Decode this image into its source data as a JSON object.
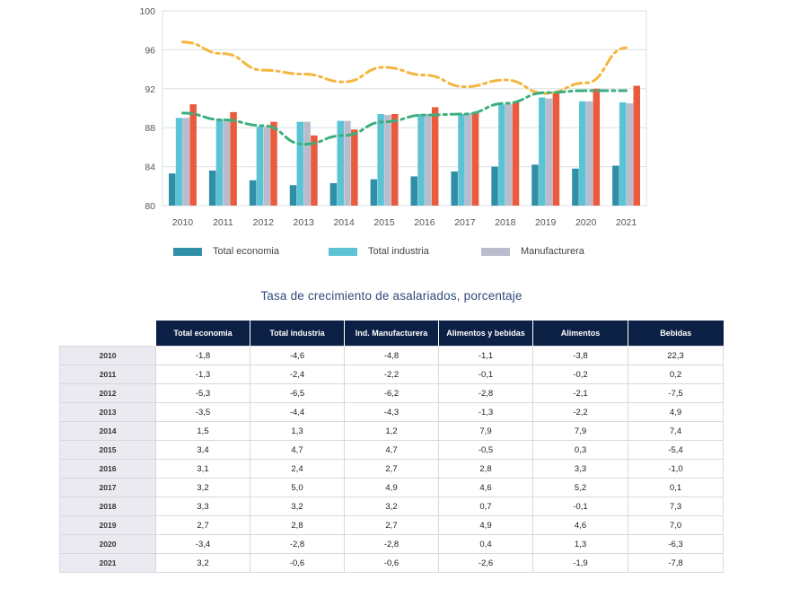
{
  "chart_data": {
    "type": "bar",
    "categories": [
      "2010",
      "2011",
      "2012",
      "2013",
      "2014",
      "2015",
      "2016",
      "2017",
      "2018",
      "2019",
      "2020",
      "2021"
    ],
    "ylim": [
      80,
      100
    ],
    "yticks": [
      80,
      84,
      88,
      92,
      96,
      100
    ],
    "grid": true,
    "series": [
      {
        "name": "Total economia",
        "kind": "bar",
        "color": "#2e8fa6",
        "values": [
          83.3,
          83.6,
          82.6,
          82.1,
          82.3,
          82.7,
          83.0,
          83.5,
          84.0,
          84.2,
          83.8,
          84.1
        ]
      },
      {
        "name": "Total industria",
        "kind": "bar",
        "color": "#5cc3d4",
        "values": [
          89.0,
          88.9,
          88.1,
          88.6,
          88.7,
          89.4,
          89.4,
          89.4,
          90.4,
          91.1,
          90.7,
          90.6
        ]
      },
      {
        "name": "Manufacturera",
        "kind": "bar",
        "color": "#b9bccc",
        "values": [
          89.0,
          88.9,
          88.1,
          88.6,
          88.7,
          89.3,
          89.4,
          89.5,
          90.4,
          91.0,
          90.7,
          90.5
        ]
      },
      {
        "name": "",
        "kind": "bar",
        "color": "#ea5a3d",
        "values": [
          90.4,
          89.6,
          88.6,
          87.2,
          87.8,
          89.4,
          90.1,
          89.6,
          90.6,
          91.6,
          92.0,
          92.3
        ]
      },
      {
        "name": "",
        "kind": "line",
        "color": "#f4b63e",
        "values": [
          96.8,
          95.6,
          93.9,
          93.5,
          92.7,
          94.2,
          93.4,
          92.2,
          92.9,
          91.5,
          92.6,
          96.2
        ]
      },
      {
        "name": "",
        "kind": "line",
        "color": "#3daf7e",
        "values": [
          89.5,
          88.8,
          88.2,
          86.3,
          87.2,
          88.6,
          89.3,
          89.4,
          90.5,
          91.6,
          91.8,
          91.8
        ]
      }
    ]
  },
  "legend": [
    {
      "label": "Total economia",
      "color": "#2e8fa6"
    },
    {
      "label": "Total industria",
      "color": "#5cc3d4"
    },
    {
      "label": "Manufacturera",
      "color": "#b9bccc"
    }
  ],
  "table": {
    "title": "Tasa de crecimiento de asalariados, porcentaje",
    "headers": [
      "Total economia",
      "Total industria",
      "Ind. Manufacturera",
      "Alimentos y bebidas",
      "Alimentos",
      "Bebidas"
    ],
    "rows": [
      {
        "year": "2010",
        "cells": [
          "-1,8",
          "-4,6",
          "-4,8",
          "-1,1",
          "-3,8",
          "22,3"
        ]
      },
      {
        "year": "2011",
        "cells": [
          "-1,3",
          "-2,4",
          "-2,2",
          "-0,1",
          "-0,2",
          "0,2"
        ]
      },
      {
        "year": "2012",
        "cells": [
          "-5,3",
          "-6,5",
          "-6,2",
          "-2,8",
          "-2,1",
          "-7,5"
        ]
      },
      {
        "year": "2013",
        "cells": [
          "-3,5",
          "-4,4",
          "-4,3",
          "-1,3",
          "-2,2",
          "4,9"
        ]
      },
      {
        "year": "2014",
        "cells": [
          "1,5",
          "1,3",
          "1,2",
          "7,9",
          "7,9",
          "7,4"
        ]
      },
      {
        "year": "2015",
        "cells": [
          "3,4",
          "4,7",
          "4,7",
          "-0,5",
          "0,3",
          "-5,4"
        ]
      },
      {
        "year": "2016",
        "cells": [
          "3,1",
          "2,4",
          "2,7",
          "2,8",
          "3,3",
          "-1,0"
        ]
      },
      {
        "year": "2017",
        "cells": [
          "3,2",
          "5,0",
          "4,9",
          "4,6",
          "5,2",
          "0,1"
        ]
      },
      {
        "year": "2018",
        "cells": [
          "3,3",
          "3,2",
          "3,2",
          "0,7",
          "-0,1",
          "7,3"
        ]
      },
      {
        "year": "2019",
        "cells": [
          "2,7",
          "2,8",
          "2,7",
          "4,9",
          "4,6",
          "7,0"
        ]
      },
      {
        "year": "2020",
        "cells": [
          "-3,4",
          "-2,8",
          "-2,8",
          "0,4",
          "1,3",
          "-6,3"
        ]
      },
      {
        "year": "2021",
        "cells": [
          "3,2",
          "-0,6",
          "-0,6",
          "-2,6",
          "-1,9",
          "-7,8"
        ]
      }
    ]
  }
}
